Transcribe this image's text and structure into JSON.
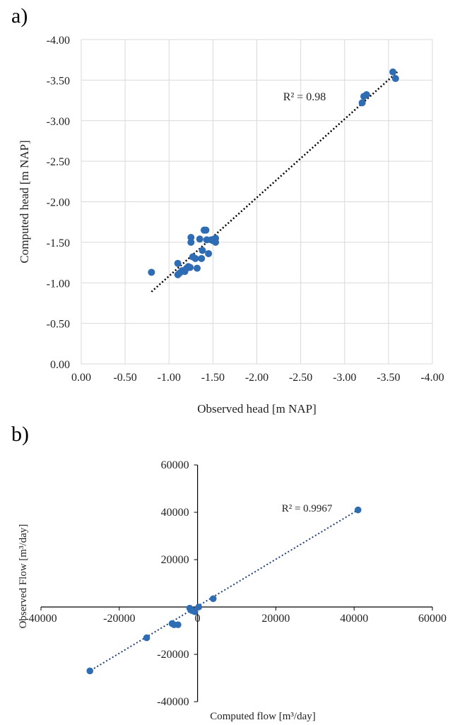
{
  "panels": [
    {
      "label": "a)"
    },
    {
      "label": "b)"
    }
  ],
  "chart_data": [
    {
      "type": "scatter",
      "panel": "a)",
      "xlabel": "Observed head [m NAP]",
      "ylabel": "Computed head [m NAP]",
      "xlim": [
        0.0,
        -4.0
      ],
      "ylim": [
        0.0,
        -4.0
      ],
      "x_ticks": [
        "0.00",
        "-0.50",
        "-1.00",
        "-1.50",
        "-2.00",
        "-2.50",
        "-3.00",
        "-3.50",
        "-4.00"
      ],
      "y_ticks": [
        "0.00",
        "-0.50",
        "-1.00",
        "-1.50",
        "-2.00",
        "-2.50",
        "-3.00",
        "-3.50",
        "-4.00"
      ],
      "grid": true,
      "marker_color": "#2e6db4",
      "trendline": {
        "style": "dotted",
        "color": "#000000",
        "from": [
          -0.8,
          -0.89
        ],
        "to": [
          -3.6,
          -3.6
        ]
      },
      "annotation": "R² = 0.98",
      "points": [
        [
          -0.8,
          -1.13
        ],
        [
          -1.1,
          -1.24
        ],
        [
          -1.1,
          -1.1
        ],
        [
          -1.12,
          -1.12
        ],
        [
          -1.15,
          -1.15
        ],
        [
          -1.18,
          -1.14
        ],
        [
          -1.2,
          -1.18
        ],
        [
          -1.22,
          -1.2
        ],
        [
          -1.24,
          -1.19
        ],
        [
          -1.25,
          -1.56
        ],
        [
          -1.25,
          -1.5
        ],
        [
          -1.27,
          -1.32
        ],
        [
          -1.3,
          -1.3
        ],
        [
          -1.32,
          -1.18
        ],
        [
          -1.35,
          -1.54
        ],
        [
          -1.37,
          -1.3
        ],
        [
          -1.38,
          -1.4
        ],
        [
          -1.4,
          -1.65
        ],
        [
          -1.42,
          -1.65
        ],
        [
          -1.43,
          -1.53
        ],
        [
          -1.45,
          -1.36
        ],
        [
          -1.48,
          -1.53
        ],
        [
          -1.5,
          -1.52
        ],
        [
          -1.53,
          -1.55
        ],
        [
          -1.53,
          -1.5
        ],
        [
          -3.2,
          -3.22
        ],
        [
          -3.22,
          -3.3
        ],
        [
          -3.25,
          -3.32
        ],
        [
          -3.55,
          -3.6
        ],
        [
          -3.58,
          -3.52
        ]
      ]
    },
    {
      "type": "scatter",
      "panel": "b)",
      "xlabel": "Computed flow [m³/day]",
      "ylabel": "Observed Flow [m³/day]",
      "xlim": [
        -40000,
        60000
      ],
      "ylim": [
        -40000,
        60000
      ],
      "x_ticks": [
        "-40000",
        "-20000",
        "0",
        "20000",
        "40000",
        "60000"
      ],
      "y_ticks": [
        "-40000",
        "-20000",
        "0",
        "20000",
        "40000",
        "60000"
      ],
      "grid": false,
      "marker_color": "#2e6db4",
      "trendline": {
        "style": "dotted",
        "color": "#1f3e7a",
        "from": [
          -28000,
          -27500
        ],
        "to": [
          41000,
          41000
        ]
      },
      "annotation": "R² = 0.9967",
      "points": [
        [
          -27500,
          -27000
        ],
        [
          -13000,
          -13000
        ],
        [
          -6500,
          -7000
        ],
        [
          -6000,
          -7500
        ],
        [
          -5000,
          -7500
        ],
        [
          -2000,
          -500
        ],
        [
          -1500,
          -1500
        ],
        [
          -700,
          -2000
        ],
        [
          300,
          0
        ],
        [
          4000,
          3500
        ],
        [
          41000,
          41000
        ]
      ]
    }
  ]
}
